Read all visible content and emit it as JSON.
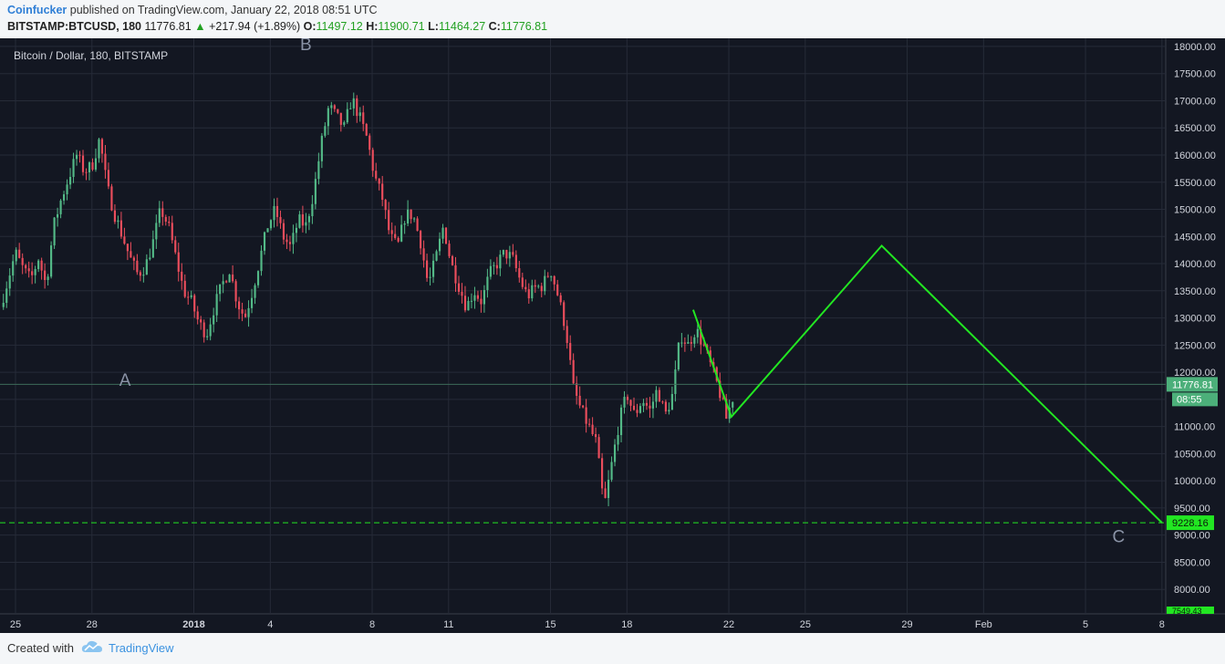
{
  "header": {
    "author": "Coinfucker",
    "published_text": " published on TradingView.com, January 22, 2018 08:51 UTC",
    "symbol": "BITSTAMP:BTCUSD, 180",
    "price": "11776.81",
    "up_arrow": "▲",
    "change": "+217.94 (+1.89%)",
    "o_label": "O:",
    "o_value": "11497.12",
    "h_label": "H:",
    "h_value": "11900.71",
    "l_label": "L:",
    "l_value": "11464.27",
    "c_label": "C:",
    "c_value": "11776.81"
  },
  "footer": {
    "created_with": "Created with",
    "brand": "TradingView"
  },
  "colors": {
    "background": "#131722",
    "grid": "#262b38",
    "up": "#53b987",
    "down": "#eb4d5c",
    "projection": "#22e622",
    "price_label": "#4caf7a",
    "support_label": "#22e622"
  },
  "chart_data": {
    "type": "candlestick",
    "title": "Bitcoin / Dollar, 180, BITSTAMP",
    "x_tick_labels": [
      "25",
      "28",
      "2018",
      "4",
      "8",
      "11",
      "15",
      "18",
      "22",
      "25",
      "29",
      "Feb",
      "5",
      "8"
    ],
    "x_tick_days": [
      0,
      3,
      7,
      10,
      14,
      17,
      21,
      24,
      28,
      31,
      35,
      38,
      42,
      45
    ],
    "y_ticks": [
      8000,
      8500,
      9000,
      9500,
      10000,
      10500,
      11000,
      11500,
      12000,
      12500,
      13000,
      13500,
      14000,
      14500,
      15000,
      15500,
      16000,
      16500,
      17000,
      17500,
      18000
    ],
    "ylim": [
      7550,
      18150
    ],
    "last_price": "11776.81",
    "last_price_value": 11776.81,
    "countdown": "08:55",
    "support_value": 9228.16,
    "support_label": "9228.16",
    "bottom_label": "7549.43",
    "wave_labels": [
      {
        "text": "A",
        "day": 4.3,
        "value": 11750
      },
      {
        "text": "B",
        "day": 11.4,
        "value": 17930
      },
      {
        "text": "C",
        "day": 43.3,
        "value": 8870
      }
    ],
    "projection_path": [
      {
        "day": 26.6,
        "value": 13150
      },
      {
        "day": 28.1,
        "value": 11180
      },
      {
        "day": 34.0,
        "value": 14330
      },
      {
        "day": 45.0,
        "value": 9228.16
      }
    ],
    "price_path": [
      [
        -0.6,
        13200
      ],
      [
        -0.3,
        13700
      ],
      [
        0.0,
        14200
      ],
      [
        0.3,
        13900
      ],
      [
        0.6,
        13700
      ],
      [
        0.9,
        14100
      ],
      [
        1.2,
        13600
      ],
      [
        1.5,
        14700
      ],
      [
        1.8,
        15200
      ],
      [
        2.1,
        15600
      ],
      [
        2.4,
        16000
      ],
      [
        2.7,
        15700
      ],
      [
        3.0,
        15800
      ],
      [
        3.3,
        16300
      ],
      [
        3.6,
        15400
      ],
      [
        3.9,
        14900
      ],
      [
        4.2,
        14500
      ],
      [
        4.5,
        14100
      ],
      [
        4.8,
        13800
      ],
      [
        5.1,
        13950
      ],
      [
        5.4,
        14400
      ],
      [
        5.7,
        15000
      ],
      [
        6.0,
        14700
      ],
      [
        6.3,
        14100
      ],
      [
        6.6,
        13500
      ],
      [
        6.9,
        13300
      ],
      [
        7.2,
        12900
      ],
      [
        7.5,
        12700
      ],
      [
        7.8,
        13200
      ],
      [
        8.1,
        13600
      ],
      [
        8.4,
        13900
      ],
      [
        8.7,
        13300
      ],
      [
        9.0,
        13000
      ],
      [
        9.3,
        13500
      ],
      [
        9.6,
        14100
      ],
      [
        9.9,
        14700
      ],
      [
        10.2,
        15000
      ],
      [
        10.5,
        14500
      ],
      [
        10.8,
        14300
      ],
      [
        11.1,
        14800
      ],
      [
        11.4,
        14700
      ],
      [
        11.7,
        15300
      ],
      [
        12.0,
        16200
      ],
      [
        12.3,
        16900
      ],
      [
        12.6,
        16700
      ],
      [
        12.9,
        16500
      ],
      [
        13.2,
        17050
      ],
      [
        13.5,
        16700
      ],
      [
        13.8,
        16300
      ],
      [
        14.1,
        15600
      ],
      [
        14.4,
        15200
      ],
      [
        14.7,
        14500
      ],
      [
        15.0,
        14300
      ],
      [
        15.3,
        14900
      ],
      [
        15.6,
        14900
      ],
      [
        15.9,
        14400
      ],
      [
        16.2,
        13600
      ],
      [
        16.5,
        14100
      ],
      [
        16.8,
        14700
      ],
      [
        17.1,
        14000
      ],
      [
        17.4,
        13600
      ],
      [
        17.7,
        13200
      ],
      [
        18.0,
        13500
      ],
      [
        18.3,
        13300
      ],
      [
        18.6,
        13800
      ],
      [
        18.9,
        14000
      ],
      [
        19.2,
        14200
      ],
      [
        19.5,
        14100
      ],
      [
        19.8,
        13700
      ],
      [
        20.1,
        13400
      ],
      [
        20.4,
        13550
      ],
      [
        20.7,
        13600
      ],
      [
        21.0,
        13900
      ],
      [
        21.3,
        13400
      ],
      [
        21.6,
        12800
      ],
      [
        21.9,
        11700
      ],
      [
        22.2,
        11300
      ],
      [
        22.5,
        11000
      ],
      [
        22.8,
        10700
      ],
      [
        23.1,
        9500
      ],
      [
        23.4,
        10300
      ],
      [
        23.7,
        11100
      ],
      [
        24.0,
        11600
      ],
      [
        24.3,
        11200
      ],
      [
        24.6,
        11500
      ],
      [
        24.9,
        11300
      ],
      [
        25.2,
        11700
      ],
      [
        25.5,
        11200
      ],
      [
        25.8,
        11600
      ],
      [
        26.1,
        12700
      ],
      [
        26.4,
        12500
      ],
      [
        26.7,
        12800
      ],
      [
        27.0,
        12500
      ],
      [
        27.3,
        12100
      ],
      [
        27.6,
        11700
      ],
      [
        27.9,
        11150
      ],
      [
        28.2,
        11600
      ]
    ]
  }
}
